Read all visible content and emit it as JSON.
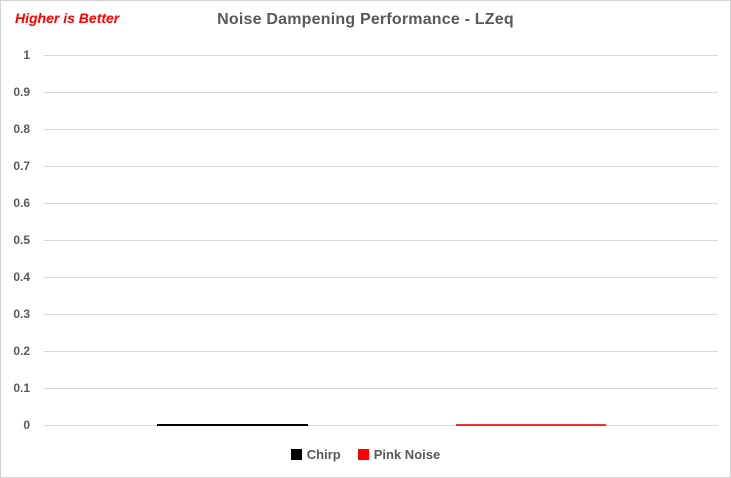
{
  "chart_data": {
    "type": "bar",
    "title": "Noise Dampening Performance - LZeq",
    "annotation": "Higher is Better",
    "categories": [
      ""
    ],
    "series": [
      {
        "name": "Chirp",
        "color": "#000000",
        "values": [
          0
        ]
      },
      {
        "name": "Pink Noise",
        "color": "#ff2a2a",
        "values": [
          0
        ]
      }
    ],
    "xlabel": "",
    "ylabel": "",
    "ylim": [
      0,
      1
    ],
    "y_tick_labels": [
      "1",
      "0.9",
      "0.8",
      "0.7",
      "0.6",
      "0.5",
      "0.4",
      "0.3",
      "0.2",
      "0.1",
      "0"
    ],
    "grid": true,
    "legend_position": "bottom"
  },
  "colors": {
    "annotation": "#ff0000",
    "title": "#595959",
    "axis_labels": "#595959",
    "gridline": "#d9d9d9",
    "border": "#d2d2d2",
    "background": "#ffffff"
  }
}
